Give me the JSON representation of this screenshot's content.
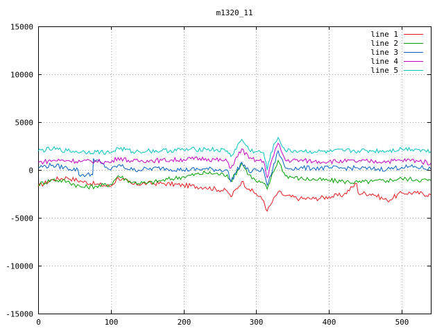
{
  "chart_data": {
    "type": "line",
    "title": "m1320_11",
    "xlabel": "",
    "ylabel": "",
    "xlim": [
      0,
      540
    ],
    "ylim": [
      -15000,
      15000
    ],
    "xticks": [
      0,
      100,
      200,
      300,
      400,
      500
    ],
    "yticks": [
      -15000,
      -10000,
      -5000,
      0,
      5000,
      10000,
      15000
    ],
    "grid": true,
    "legend_position": "top-right",
    "series": [
      {
        "name": "line 1",
        "color": "#e41a1c",
        "x": [
          0,
          20,
          40,
          60,
          80,
          100,
          110,
          130,
          150,
          170,
          200,
          230,
          260,
          265,
          280,
          290,
          300,
          310,
          315,
          320,
          330,
          340,
          360,
          380,
          400,
          420,
          438,
          440,
          460,
          480,
          500,
          520,
          540
        ],
        "y": [
          -1700,
          -1000,
          -800,
          -1200,
          -1500,
          -1700,
          -800,
          -1500,
          -1400,
          -1400,
          -1600,
          -1800,
          -2200,
          -2800,
          -1200,
          -2000,
          -2500,
          -3200,
          -4300,
          -3600,
          -2300,
          -2700,
          -3000,
          -3000,
          -2800,
          -2600,
          -1400,
          -2400,
          -2500,
          -3200,
          -2400,
          -2400,
          -2600
        ]
      },
      {
        "name": "line 2",
        "color": "#00a000",
        "x": [
          0,
          20,
          40,
          60,
          80,
          100,
          110,
          130,
          150,
          170,
          200,
          230,
          260,
          265,
          280,
          290,
          300,
          310,
          315,
          320,
          330,
          340,
          360,
          380,
          400,
          420,
          440,
          460,
          480,
          500,
          520,
          540
        ],
        "y": [
          -1500,
          -1000,
          -1200,
          -1800,
          -1700,
          -1500,
          -600,
          -1300,
          -1400,
          -1100,
          -700,
          -300,
          -500,
          -1200,
          700,
          -500,
          -1200,
          -1400,
          -2000,
          -900,
          1000,
          -600,
          -900,
          -1000,
          -1100,
          -1200,
          -1300,
          -1200,
          -1100,
          -900,
          -1000,
          -1100
        ]
      },
      {
        "name": "line 3",
        "color": "#0060c0",
        "x": [
          0,
          20,
          40,
          55,
          56,
          75,
          76,
          100,
          110,
          130,
          150,
          170,
          200,
          230,
          260,
          265,
          280,
          290,
          300,
          310,
          315,
          320,
          330,
          340,
          360,
          380,
          400,
          420,
          440,
          460,
          480,
          500,
          520,
          540
        ],
        "y": [
          300,
          500,
          200,
          0,
          -500,
          -500,
          1200,
          0,
          500,
          0,
          100,
          200,
          0,
          100,
          0,
          -1200,
          800,
          -200,
          0,
          0,
          -1600,
          -600,
          2000,
          200,
          200,
          200,
          200,
          200,
          200,
          100,
          100,
          300,
          300,
          100
        ]
      },
      {
        "name": "line 4",
        "color": "#c000c0",
        "x": [
          0,
          20,
          40,
          60,
          80,
          100,
          110,
          130,
          150,
          170,
          200,
          230,
          260,
          265,
          280,
          290,
          300,
          310,
          315,
          320,
          330,
          340,
          360,
          380,
          400,
          420,
          440,
          460,
          480,
          500,
          520,
          540
        ],
        "y": [
          800,
          1000,
          1000,
          900,
          900,
          800,
          1300,
          900,
          1000,
          1000,
          1100,
          1200,
          900,
          200,
          2200,
          1200,
          1000,
          900,
          -800,
          700,
          2800,
          1000,
          1000,
          900,
          900,
          900,
          900,
          900,
          900,
          1000,
          1000,
          700
        ]
      },
      {
        "name": "line 5",
        "color": "#00c0c0",
        "x": [
          0,
          20,
          40,
          60,
          80,
          100,
          110,
          130,
          150,
          170,
          200,
          230,
          260,
          265,
          280,
          290,
          300,
          310,
          315,
          320,
          330,
          340,
          360,
          380,
          400,
          420,
          440,
          460,
          480,
          500,
          520,
          540
        ],
        "y": [
          2000,
          2200,
          2000,
          1900,
          1900,
          1800,
          2300,
          1900,
          2000,
          2000,
          2100,
          2200,
          2000,
          1400,
          3200,
          2100,
          1900,
          1800,
          0,
          1800,
          3400,
          2000,
          2000,
          1900,
          1900,
          2000,
          2000,
          2000,
          2000,
          2200,
          2200,
          1900
        ]
      }
    ]
  }
}
